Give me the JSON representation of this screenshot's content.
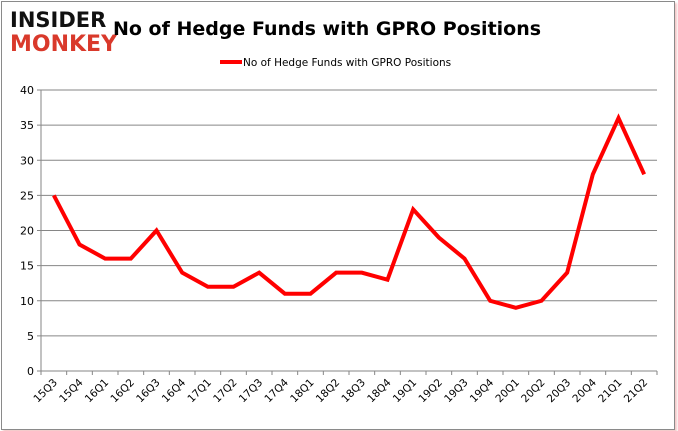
{
  "logo": {
    "line1": "INSIDER",
    "line2": "MONKEY"
  },
  "colors": {
    "series": "#ff0000",
    "grid": "#868686",
    "logo_dark": "#111111",
    "logo_red": "#d9392b"
  },
  "chart_data": {
    "type": "line",
    "title": "No of Hedge Funds with GPRO Positions",
    "xlabel": "",
    "ylabel": "",
    "ylim": [
      0,
      40
    ],
    "yticks": [
      0,
      5,
      10,
      15,
      20,
      25,
      30,
      35,
      40
    ],
    "grid": true,
    "legend": "top",
    "categories": [
      "15Q3",
      "15Q4",
      "16Q1",
      "16Q2",
      "16Q3",
      "16Q4",
      "17Q1",
      "17Q2",
      "17Q3",
      "17Q4",
      "18Q1",
      "18Q2",
      "18Q3",
      "18Q4",
      "19Q1",
      "19Q2",
      "19Q3",
      "19Q4",
      "20Q1",
      "20Q2",
      "20Q3",
      "20Q4",
      "21Q1",
      "21Q2"
    ],
    "series": [
      {
        "name": "No of Hedge Funds with GPRO Positions",
        "values": [
          25,
          18,
          16,
          16,
          20,
          14,
          12,
          12,
          14,
          11,
          11,
          14,
          14,
          13,
          23,
          19,
          16,
          10,
          9,
          10,
          14,
          28,
          36,
          28
        ]
      }
    ]
  }
}
